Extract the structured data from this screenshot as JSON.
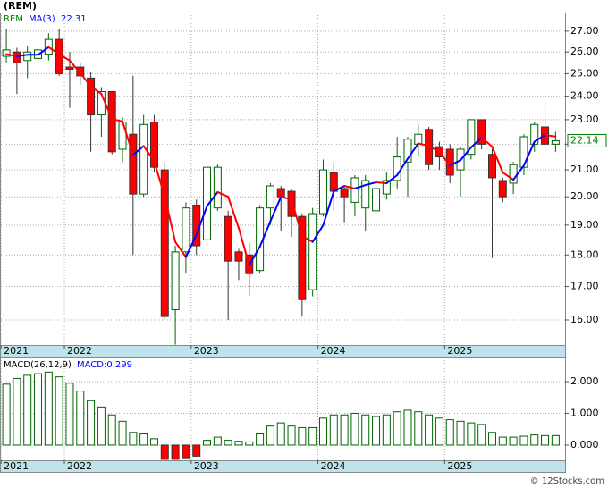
{
  "chart_data": [
    {
      "type": "candlestick",
      "title": "(REM)",
      "x": [
        0,
        1,
        2,
        3,
        4,
        5,
        6,
        7,
        8,
        9,
        10,
        11,
        12,
        13,
        14,
        15,
        16,
        17,
        18,
        19,
        20,
        21,
        22,
        23,
        24,
        25,
        26,
        27,
        28,
        29,
        30,
        31,
        32,
        33,
        34,
        35,
        36,
        37,
        38,
        39,
        40,
        41,
        42,
        43,
        44,
        45,
        46,
        47,
        48,
        49,
        50,
        51,
        52
      ],
      "series": [
        {
          "name": "REM",
          "color": "#008000",
          "up_color": "#006400",
          "down_color": "#ff0000",
          "open": [
            25.8,
            26.0,
            25.6,
            25.7,
            25.9,
            26.6,
            25.3,
            25.3,
            24.8,
            23.2,
            24.2,
            21.8,
            22.4,
            20.1,
            22.9,
            21.0,
            16.3,
            18.1,
            19.7,
            18.5,
            19.6,
            19.3,
            18.1,
            18.0,
            17.5,
            19.6,
            20.3,
            20.2,
            19.3,
            16.9,
            19.4,
            20.9,
            20.3,
            19.8,
            19.6,
            19.5,
            20.1,
            20.6,
            21.3,
            22.0,
            22.6,
            21.9,
            21.8,
            21.0,
            21.6,
            23.0,
            21.6,
            20.6,
            20.5,
            21.1,
            22.0,
            22.7,
            22.0
          ],
          "high": [
            27.1,
            26.2,
            26.3,
            26.5,
            26.9,
            27.1,
            26.0,
            25.5,
            25.1,
            24.4,
            24.2,
            23.1,
            24.9,
            23.2,
            23.2,
            21.3,
            18.3,
            19.8,
            19.9,
            21.4,
            21.2,
            19.5,
            18.2,
            18.4,
            19.7,
            20.5,
            20.4,
            20.3,
            19.4,
            19.6,
            21.4,
            21.3,
            20.4,
            20.8,
            20.8,
            20.4,
            20.9,
            22.3,
            22.3,
            22.8,
            22.7,
            22.1,
            22.0,
            21.9,
            23.0,
            23.0,
            21.8,
            20.7,
            21.3,
            22.4,
            22.9,
            23.7,
            22.5
          ],
          "low": [
            25.5,
            24.1,
            24.8,
            25.4,
            25.6,
            24.9,
            23.5,
            24.5,
            21.7,
            22.3,
            21.6,
            21.3,
            18.0,
            20.0,
            20.9,
            16.0,
            15.3,
            17.4,
            18.0,
            18.4,
            19.5,
            16.0,
            17.2,
            16.7,
            17.4,
            19.0,
            18.8,
            18.6,
            16.1,
            16.7,
            19.3,
            19.5,
            19.1,
            19.3,
            18.8,
            19.4,
            19.9,
            20.3,
            20.0,
            21.5,
            21.0,
            21.0,
            20.5,
            20.0,
            21.4,
            21.8,
            17.9,
            19.8,
            20.1,
            20.8,
            21.7,
            21.7,
            21.7
          ],
          "close": [
            26.1,
            25.5,
            26.0,
            26.1,
            26.6,
            25.0,
            25.2,
            24.9,
            23.2,
            24.2,
            21.7,
            22.9,
            20.1,
            22.8,
            21.1,
            16.1,
            18.1,
            19.6,
            18.3,
            21.1,
            21.1,
            17.8,
            17.8,
            17.4,
            19.6,
            20.4,
            20.0,
            19.3,
            16.6,
            19.4,
            21.0,
            20.2,
            20.0,
            20.7,
            20.6,
            20.3,
            20.6,
            21.5,
            22.2,
            22.4,
            21.2,
            21.5,
            20.8,
            21.8,
            23.0,
            22.0,
            20.7,
            20.0,
            21.2,
            22.3,
            22.8,
            22.0,
            22.14
          ]
        },
        {
          "name": "MA(3)",
          "type": "line",
          "color": "#0000ff",
          "down_color": "#ff0000",
          "values": [
            25.9,
            25.8,
            25.87,
            25.87,
            26.23,
            25.9,
            25.6,
            25.03,
            24.43,
            24.1,
            23.03,
            22.93,
            21.57,
            21.93,
            21.33,
            20.0,
            18.43,
            17.93,
            18.67,
            19.67,
            20.17,
            20.0,
            18.9,
            17.67,
            18.27,
            19.13,
            20.0,
            19.9,
            18.63,
            18.43,
            19.0,
            20.2,
            20.4,
            20.3,
            20.43,
            20.53,
            20.5,
            20.8,
            21.43,
            22.03,
            21.93,
            21.7,
            21.17,
            21.37,
            21.87,
            22.27,
            21.9,
            20.9,
            20.63,
            21.17,
            22.1,
            22.37,
            22.31
          ]
        }
      ],
      "log_scale": true,
      "grid": true,
      "xlim": [
        -0.6,
        52.9
      ],
      "ylim": [
        15.29,
        27.93
      ],
      "xticks": [
        {
          "value": -0.5,
          "label": "2021"
        },
        {
          "value": 5.5,
          "label": "2022"
        },
        {
          "value": 17.5,
          "label": "2023"
        },
        {
          "value": 29.5,
          "label": "2024"
        },
        {
          "value": 41.5,
          "label": "2025"
        }
      ],
      "yticks": [
        {
          "value": 16,
          "label": "16.00"
        },
        {
          "value": 17,
          "label": "17.00"
        },
        {
          "value": 18,
          "label": "18.00"
        },
        {
          "value": 19,
          "label": "19.00"
        },
        {
          "value": 20,
          "label": "20.00"
        },
        {
          "value": 21,
          "label": "21.00"
        },
        {
          "value": 22,
          "label": "22.00"
        },
        {
          "value": 23,
          "label": "23.00"
        },
        {
          "value": 24,
          "label": "24.00"
        },
        {
          "value": 25,
          "label": "25.00"
        },
        {
          "value": 26,
          "label": "26.00"
        },
        {
          "value": 27,
          "label": "27.00"
        }
      ]
    },
    {
      "type": "bar",
      "title": "MACD(26,12,9)",
      "subtitle": "MACD:0.299",
      "subtitle_color": "#0000ff",
      "x": [
        0,
        1,
        2,
        3,
        4,
        5,
        6,
        7,
        8,
        9,
        10,
        11,
        12,
        13,
        14,
        15,
        16,
        17,
        18,
        19,
        20,
        21,
        22,
        23,
        24,
        25,
        26,
        27,
        28,
        29,
        30,
        31,
        32,
        33,
        34,
        35,
        36,
        37,
        38,
        39,
        40,
        41,
        42,
        43,
        44,
        45,
        46,
        47,
        48,
        49,
        50,
        51,
        52
      ],
      "values": [
        1.92,
        2.1,
        2.2,
        2.25,
        2.3,
        2.15,
        1.95,
        1.7,
        1.4,
        1.2,
        0.95,
        0.75,
        0.4,
        0.35,
        0.2,
        -0.45,
        -0.45,
        -0.4,
        -0.35,
        0.15,
        0.25,
        0.15,
        0.12,
        0.1,
        0.35,
        0.6,
        0.7,
        0.6,
        0.55,
        0.55,
        0.85,
        0.95,
        0.95,
        1.0,
        0.95,
        0.9,
        0.95,
        1.05,
        1.1,
        1.05,
        0.95,
        0.85,
        0.8,
        0.75,
        0.7,
        0.65,
        0.4,
        0.25,
        0.25,
        0.28,
        0.32,
        0.3,
        0.299
      ],
      "color": "#006400",
      "negative_color": "#ff0000",
      "grid": true,
      "xlim": [
        -0.6,
        52.9
      ],
      "ylim": [
        -0.48,
        2.76
      ],
      "xticks": [
        {
          "value": -0.5,
          "label": "2021"
        },
        {
          "value": 5.5,
          "label": "2022"
        },
        {
          "value": 17.5,
          "label": "2023"
        },
        {
          "value": 29.5,
          "label": "2024"
        },
        {
          "value": 41.5,
          "label": "2025"
        }
      ],
      "yticks": [
        {
          "value": 0,
          "label": "0.000"
        },
        {
          "value": 1,
          "label": "1.000"
        },
        {
          "value": 2,
          "label": "2.000"
        }
      ]
    }
  ],
  "source": "© 12Stocks.com"
}
